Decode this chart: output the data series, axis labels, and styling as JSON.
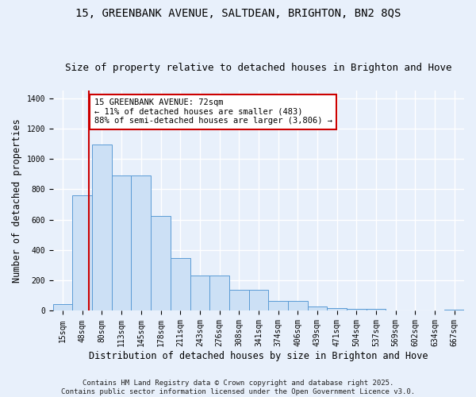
{
  "title": "15, GREENBANK AVENUE, SALTDEAN, BRIGHTON, BN2 8QS",
  "subtitle": "Size of property relative to detached houses in Brighton and Hove",
  "xlabel": "Distribution of detached houses by size in Brighton and Hove",
  "ylabel": "Number of detached properties",
  "categories": [
    "15sqm",
    "48sqm",
    "80sqm",
    "113sqm",
    "145sqm",
    "178sqm",
    "211sqm",
    "243sqm",
    "276sqm",
    "308sqm",
    "341sqm",
    "374sqm",
    "406sqm",
    "439sqm",
    "471sqm",
    "504sqm",
    "537sqm",
    "569sqm",
    "602sqm",
    "634sqm",
    "667sqm"
  ],
  "values": [
    45,
    760,
    1095,
    890,
    890,
    625,
    345,
    230,
    230,
    140,
    140,
    65,
    65,
    30,
    20,
    15,
    12,
    5,
    5,
    5,
    10
  ],
  "bar_color": "#cce0f5",
  "bar_edge_color": "#5b9bd5",
  "background_color": "#e8f0fb",
  "grid_color": "#ffffff",
  "vline_x": 1.35,
  "vline_color": "#cc0000",
  "annotation_text": "15 GREENBANK AVENUE: 72sqm\n← 11% of detached houses are smaller (483)\n88% of semi-detached houses are larger (3,806) →",
  "annotation_box_color": "#ffffff",
  "annotation_box_edge": "#cc0000",
  "footer_line1": "Contains HM Land Registry data © Crown copyright and database right 2025.",
  "footer_line2": "Contains public sector information licensed under the Open Government Licence v3.0.",
  "ylim": [
    0,
    1450
  ],
  "title_fontsize": 10,
  "subtitle_fontsize": 9,
  "axis_label_fontsize": 8.5,
  "tick_fontsize": 7,
  "annotation_fontsize": 7.5,
  "footer_fontsize": 6.5
}
